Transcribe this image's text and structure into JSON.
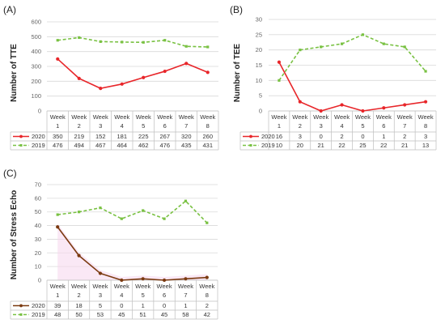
{
  "chart_data": [
    {
      "type": "line",
      "panel_label": "(A)",
      "ylabel": "Number of TTE",
      "ylim": [
        0,
        600
      ],
      "yticks": [
        0,
        100,
        200,
        300,
        400,
        500,
        600
      ],
      "categories": [
        "Week 1",
        "Week 2",
        "Week 3",
        "Week 4",
        "Week 5",
        "Week 6",
        "Week 7",
        "Week 8"
      ],
      "series": [
        {
          "name": "2020",
          "values": [
            350,
            219,
            152,
            181,
            225,
            267,
            320,
            260
          ],
          "color": "#e8262a",
          "style": "solid"
        },
        {
          "name": "2019",
          "values": [
            476,
            494,
            467,
            464,
            462,
            476,
            435,
            431
          ],
          "color": "#79c142",
          "style": "dashed"
        }
      ],
      "grid": true
    },
    {
      "type": "line",
      "panel_label": "(B)",
      "ylabel": "Number of TEE",
      "ylim": [
        0,
        30
      ],
      "yticks": [
        0,
        5,
        10,
        15,
        20,
        25,
        30
      ],
      "categories": [
        "Week 1",
        "Week 2",
        "Week 3",
        "Week 4",
        "Week 5",
        "Week 6",
        "Week 7",
        "Week 8"
      ],
      "series": [
        {
          "name": "2020",
          "values": [
            16,
            3,
            0,
            2,
            0,
            1,
            2,
            3
          ],
          "color": "#e8262a",
          "style": "solid"
        },
        {
          "name": "2019",
          "values": [
            10,
            20,
            21,
            22,
            25,
            22,
            21,
            13
          ],
          "color": "#79c142",
          "style": "dashed"
        }
      ],
      "grid": true
    },
    {
      "type": "line",
      "panel_label": "(C)",
      "ylabel": "Number of Stress Echo",
      "ylim": [
        0,
        70
      ],
      "yticks": [
        0,
        10,
        20,
        30,
        40,
        50,
        60,
        70
      ],
      "categories": [
        "Week 1",
        "Week 2",
        "Week 3",
        "Week 4",
        "Week 5",
        "Week 6",
        "Week 7",
        "Week 8"
      ],
      "series": [
        {
          "name": "2020",
          "values": [
            39,
            18,
            5,
            0,
            1,
            0,
            1,
            2
          ],
          "color": "#7b3a10",
          "style": "solid"
        },
        {
          "name": "2019",
          "values": [
            48,
            50,
            53,
            45,
            51,
            45,
            58,
            42
          ],
          "color": "#79c142",
          "style": "dashed"
        }
      ],
      "grid": true
    }
  ]
}
